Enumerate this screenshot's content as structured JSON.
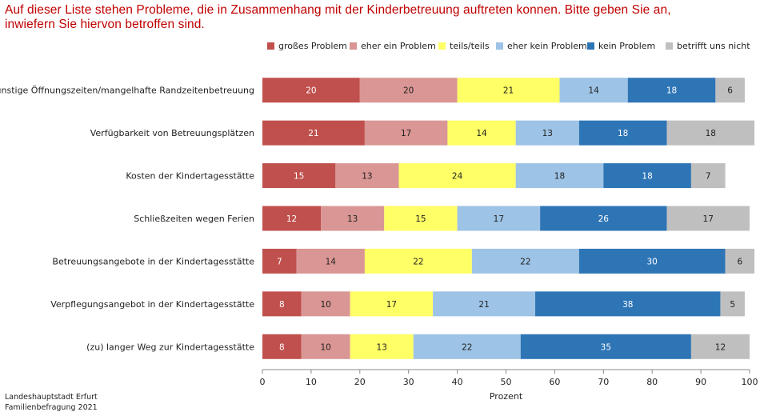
{
  "title": {
    "line1": "Auf dieser Liste stehen Probleme, die in Zusammenhang mit der Kinderbetreuung auftreten konnen. Bitte geben Sie an,",
    "line2": "inwiefern Sie hiervon betroffen sind."
  },
  "source": {
    "line1": "Landeshauptstadt Erfurt",
    "line2": "Familienbefragung 2021"
  },
  "colors": {
    "series": [
      "#c0504d",
      "#d99694",
      "#ffff66",
      "#9dc3e6",
      "#2e75b6",
      "#bfbfbf"
    ],
    "label_dark_text": "#ffffff",
    "label_light_text": "#222222"
  },
  "chart_data": {
    "type": "bar",
    "orientation": "horizontal",
    "stacked": true,
    "xlabel": "Prozent",
    "ylabel": "",
    "xlim": [
      0,
      100
    ],
    "xticks": [
      0,
      10,
      20,
      30,
      40,
      50,
      60,
      70,
      80,
      90,
      100
    ],
    "grid": false,
    "legend_position": "top",
    "categories": [
      "ungünstige Öffnungszeiten/mangelhafte Randzeitenbetreuung",
      "Verfügbarkeit von Betreuungsplätzen",
      "Kosten der Kindertagesstätte",
      "Schließzeiten wegen Ferien",
      "Betreuungsangebote in der Kindertagesstätte",
      "Verpflegungsangebot in der Kindertagesstätte",
      "(zu) langer Weg zur Kindertagesstätte"
    ],
    "series": [
      {
        "name": "großes Problem",
        "values": [
          20,
          21,
          15,
          12,
          7,
          8,
          8
        ]
      },
      {
        "name": "eher ein Problem",
        "values": [
          20,
          17,
          13,
          13,
          14,
          10,
          10
        ]
      },
      {
        "name": "teils/teils",
        "values": [
          21,
          14,
          24,
          15,
          22,
          17,
          13
        ]
      },
      {
        "name": "eher kein Problem",
        "values": [
          14,
          13,
          18,
          17,
          22,
          21,
          22
        ]
      },
      {
        "name": "kein Problem",
        "values": [
          18,
          18,
          18,
          26,
          30,
          38,
          35
        ]
      },
      {
        "name": "betrifft uns nicht",
        "values": [
          6,
          18,
          7,
          17,
          6,
          5,
          12
        ]
      }
    ]
  }
}
